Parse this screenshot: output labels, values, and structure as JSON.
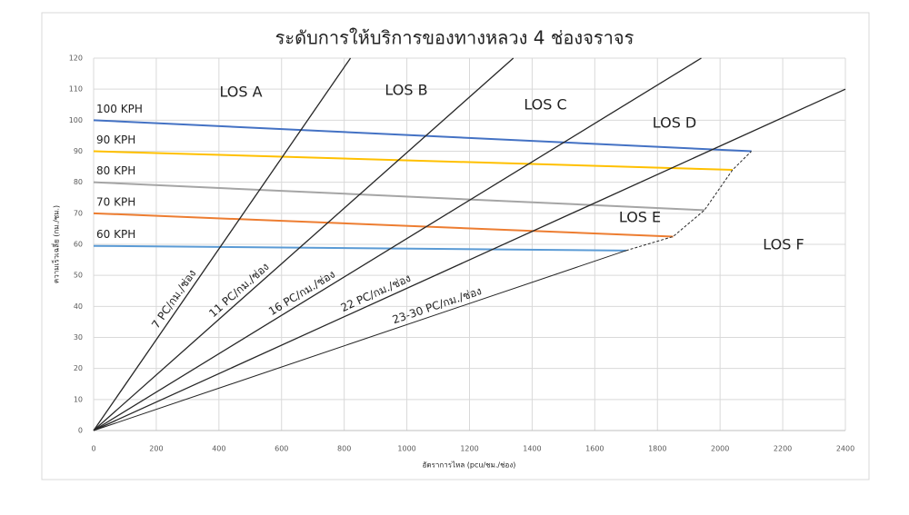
{
  "chart_data": {
    "type": "line",
    "title": "ระดับการให้บริการของทางหลวง 4 ช่องจราจร",
    "x_label": "อัตราการไหล (pcu/ชม./ช่อง)",
    "y_label": "ความเร็วเฉลี่ย (กม./ชม.)",
    "xlim": [
      0,
      2400
    ],
    "ylim": [
      0,
      120
    ],
    "xticks": [
      0,
      200,
      400,
      600,
      800,
      1000,
      1200,
      1400,
      1600,
      1800,
      2000,
      2200,
      2400
    ],
    "yticks": [
      0,
      10,
      20,
      30,
      40,
      50,
      60,
      70,
      80,
      90,
      100,
      110,
      120
    ],
    "grid": true,
    "series": [
      {
        "name": "100 KPH",
        "color": "#4472c4",
        "x": [
          0,
          2100
        ],
        "values": [
          100,
          90
        ]
      },
      {
        "name": "90 KPH",
        "color": "#ffc000",
        "x": [
          0,
          2040
        ],
        "values": [
          90,
          84
        ]
      },
      {
        "name": "80 KPH",
        "color": "#a5a5a5",
        "x": [
          0,
          1950
        ],
        "values": [
          80,
          71
        ]
      },
      {
        "name": "70 KPH",
        "color": "#ed7d31",
        "x": [
          0,
          1850
        ],
        "values": [
          70,
          62.5
        ]
      },
      {
        "name": "60 KPH",
        "color": "#5b9bd5",
        "x": [
          0,
          1700
        ],
        "values": [
          59.5,
          58
        ]
      },
      {
        "name": "7 PC/กม./ช่อง",
        "color": "#262626",
        "x": [
          0,
          820
        ],
        "values": [
          0,
          120
        ]
      },
      {
        "name": "11 PC/กม./ช่อง",
        "color": "#262626",
        "x": [
          0,
          1340
        ],
        "values": [
          0,
          120
        ]
      },
      {
        "name": "16 PC/กม./ช่อง",
        "color": "#262626",
        "x": [
          0,
          1940
        ],
        "values": [
          0,
          120
        ]
      },
      {
        "name": "22 PC/กม./ช่อง",
        "color": "#262626",
        "x": [
          0,
          2400
        ],
        "values": [
          0,
          110
        ]
      },
      {
        "name": "23-30 PC/กม./ช่อง",
        "color": "#262626",
        "x": [
          0,
          1700
        ],
        "values": [
          0,
          58
        ]
      },
      {
        "color": "#262626",
        "dashed": true,
        "x": [
          1700,
          1850,
          1950,
          2040,
          2100
        ],
        "values": [
          58,
          62.5,
          71,
          84,
          90
        ]
      }
    ],
    "annotations": [
      "LOS A",
      "LOS B",
      "LOS C",
      "LOS D",
      "LOS E",
      "LOS F"
    ]
  }
}
